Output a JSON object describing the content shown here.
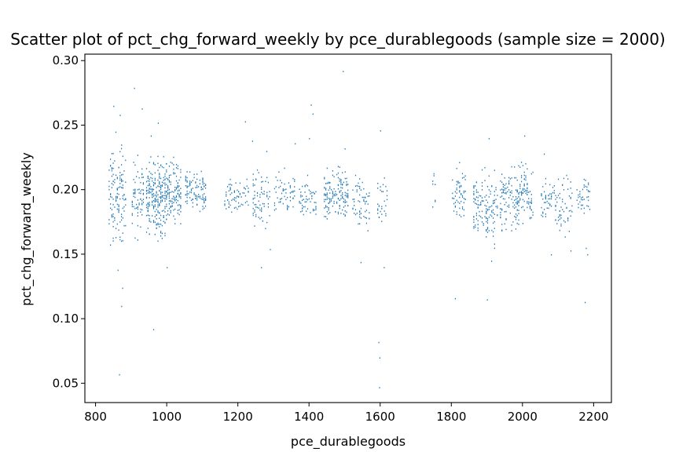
{
  "chart_data": {
    "type": "scatter",
    "title": "Scatter plot of pct_chg_forward_weekly by pce_durablegoods (sample size = 2000)",
    "xlabel": "pce_durablegoods",
    "ylabel": "pct_chg_forward_weekly",
    "xlim": [
      770,
      2250
    ],
    "ylim": [
      0.035,
      0.305
    ],
    "xticks": [
      800,
      1000,
      1200,
      1400,
      1600,
      1800,
      2000,
      2200
    ],
    "yticks": [
      0.05,
      0.1,
      0.15,
      0.2,
      0.25,
      0.3
    ],
    "xtick_labels": [
      "800",
      "1000",
      "1200",
      "1400",
      "1600",
      "1800",
      "2000",
      "2200"
    ],
    "ytick_labels": [
      "0.05",
      "0.10",
      "0.15",
      "0.20",
      "0.25",
      "0.30"
    ],
    "marker_color": "#1f77b4",
    "grid": false,
    "clusters": [
      {
        "x": [
          835,
          885
        ],
        "y": [
          0.145,
          0.245
        ],
        "n": 130
      },
      {
        "x": [
          900,
          935
        ],
        "y": [
          0.155,
          0.235
        ],
        "n": 70
      },
      {
        "x": [
          940,
          1000
        ],
        "y": [
          0.155,
          0.235
        ],
        "n": 260
      },
      {
        "x": [
          1000,
          1040
        ],
        "y": [
          0.165,
          0.23
        ],
        "n": 120
      },
      {
        "x": [
          1050,
          1110
        ],
        "y": [
          0.175,
          0.22
        ],
        "n": 110
      },
      {
        "x": [
          1160,
          1230
        ],
        "y": [
          0.175,
          0.215
        ],
        "n": 70
      },
      {
        "x": [
          1240,
          1290
        ],
        "y": [
          0.16,
          0.225
        ],
        "n": 70
      },
      {
        "x": [
          1300,
          1360
        ],
        "y": [
          0.175,
          0.22
        ],
        "n": 60
      },
      {
        "x": [
          1370,
          1420
        ],
        "y": [
          0.17,
          0.215
        ],
        "n": 55
      },
      {
        "x": [
          1440,
          1510
        ],
        "y": [
          0.17,
          0.225
        ],
        "n": 150
      },
      {
        "x": [
          1520,
          1570
        ],
        "y": [
          0.16,
          0.22
        ],
        "n": 60
      },
      {
        "x": [
          1590,
          1620
        ],
        "y": [
          0.155,
          0.225
        ],
        "n": 30
      },
      {
        "x": [
          1745,
          1755
        ],
        "y": [
          0.18,
          0.22
        ],
        "n": 8
      },
      {
        "x": [
          1800,
          1840
        ],
        "y": [
          0.165,
          0.23
        ],
        "n": 60
      },
      {
        "x": [
          1860,
          1930
        ],
        "y": [
          0.15,
          0.225
        ],
        "n": 140
      },
      {
        "x": [
          1935,
          1990
        ],
        "y": [
          0.16,
          0.225
        ],
        "n": 120
      },
      {
        "x": [
          1990,
          2030
        ],
        "y": [
          0.165,
          0.23
        ],
        "n": 80
      },
      {
        "x": [
          2050,
          2090
        ],
        "y": [
          0.17,
          0.215
        ],
        "n": 45
      },
      {
        "x": [
          2090,
          2140
        ],
        "y": [
          0.16,
          0.22
        ],
        "n": 60
      },
      {
        "x": [
          2150,
          2190
        ],
        "y": [
          0.175,
          0.22
        ],
        "n": 40
      }
    ],
    "outliers": [
      [
        850,
        0.265
      ],
      [
        868,
        0.258
      ],
      [
        856,
        0.245
      ],
      [
        872,
        0.235
      ],
      [
        862,
        0.138
      ],
      [
        875,
        0.124
      ],
      [
        872,
        0.11
      ],
      [
        866,
        0.057
      ],
      [
        908,
        0.279
      ],
      [
        930,
        0.263
      ],
      [
        955,
        0.242
      ],
      [
        975,
        0.252
      ],
      [
        962,
        0.092
      ],
      [
        1000,
        0.14
      ],
      [
        1220,
        0.253
      ],
      [
        1240,
        0.238
      ],
      [
        1280,
        0.23
      ],
      [
        1290,
        0.154
      ],
      [
        1265,
        0.14
      ],
      [
        1360,
        0.236
      ],
      [
        1405,
        0.266
      ],
      [
        1410,
        0.259
      ],
      [
        1400,
        0.24
      ],
      [
        1495,
        0.292
      ],
      [
        1500,
        0.232
      ],
      [
        1545,
        0.144
      ],
      [
        1595,
        0.082
      ],
      [
        1598,
        0.07
      ],
      [
        1597,
        0.047
      ],
      [
        1600,
        0.246
      ],
      [
        1610,
        0.14
      ],
      [
        1810,
        0.116
      ],
      [
        1900,
        0.115
      ],
      [
        1905,
        0.24
      ],
      [
        1912,
        0.145
      ],
      [
        1980,
        0.17
      ],
      [
        2005,
        0.242
      ],
      [
        2060,
        0.228
      ],
      [
        2080,
        0.15
      ],
      [
        2135,
        0.153
      ],
      [
        2175,
        0.113
      ],
      [
        2182,
        0.15
      ],
      [
        2178,
        0.155
      ]
    ]
  }
}
